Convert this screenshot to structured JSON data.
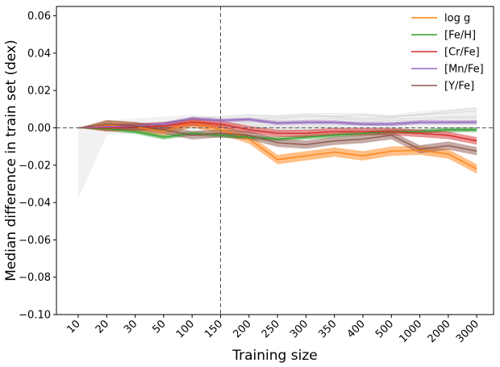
{
  "chart_data": {
    "type": "line",
    "title": "",
    "xlabel": "Training size",
    "ylabel": "Median difference in train set (dex)",
    "categories": [
      "10",
      "20",
      "30",
      "50",
      "100",
      "150",
      "200",
      "250",
      "300",
      "350",
      "400",
      "500",
      "1000",
      "2000",
      "3000"
    ],
    "ylim": [
      -0.1,
      0.065
    ],
    "yticks": [
      0.06,
      0.04,
      0.02,
      0.0,
      -0.02,
      -0.04,
      -0.06,
      -0.08,
      -0.1
    ],
    "ytick_labels": [
      "0.06",
      "0.04",
      "0.02",
      "0.00",
      "−0.02",
      "−0.04",
      "−0.06",
      "−0.08",
      "−0.10"
    ],
    "reference_vline_category": "150",
    "reference_hline_value": 0.0,
    "legend_position": "top-right",
    "series": [
      {
        "name": "log g",
        "color": "#ff7f0e",
        "values": [
          0.0,
          0.0015,
          0.0005,
          -0.002,
          0.003,
          -0.001,
          -0.006,
          -0.017,
          -0.015,
          -0.013,
          -0.015,
          -0.0125,
          -0.012,
          -0.014,
          -0.022
        ],
        "band": 0.0025
      },
      {
        "name": "[Fe/H]",
        "color": "#2ca02c",
        "values": [
          0.0,
          -0.0005,
          -0.002,
          -0.005,
          -0.003,
          -0.004,
          -0.005,
          -0.006,
          -0.005,
          -0.004,
          -0.003,
          -0.002,
          -0.002,
          -0.001,
          -0.001
        ],
        "band": 0.0012
      },
      {
        "name": "[Cr/Fe]",
        "color": "#d62728",
        "values": [
          0.0,
          0.0,
          0.0005,
          0.001,
          0.003,
          0.002,
          -0.001,
          -0.003,
          -0.003,
          -0.002,
          -0.002,
          -0.002,
          -0.003,
          -0.004,
          -0.007
        ],
        "band": 0.002
      },
      {
        "name": "[Mn/Fe]",
        "color": "#9467bd",
        "values": [
          0.0,
          0.0005,
          0.001,
          0.002,
          0.005,
          0.004,
          0.0045,
          0.0025,
          0.003,
          0.003,
          0.002,
          0.002,
          0.003,
          0.003,
          0.003
        ],
        "band": 0.001
      },
      {
        "name": "[Y/Fe]",
        "color": "#8c564b",
        "values": [
          0.0,
          0.002,
          0.001,
          -0.001,
          -0.004,
          -0.003,
          -0.004,
          -0.008,
          -0.009,
          -0.007,
          -0.006,
          -0.004,
          -0.0115,
          -0.0095,
          -0.0125
        ],
        "band": 0.0022
      }
    ],
    "background_series_color": "#bbbbbb",
    "background_series": [
      [
        0.0,
        0.001,
        0.002,
        0.003,
        0.004,
        0.004,
        0.005,
        0.005,
        0.006,
        0.006,
        0.005,
        0.006,
        0.007,
        0.009,
        0.0105
      ],
      [
        0.0,
        0.0,
        0.001,
        0.002,
        0.003,
        0.003,
        0.004,
        0.004,
        0.004,
        0.005,
        0.004,
        0.005,
        0.005,
        0.006,
        0.006
      ],
      [
        0.0,
        0.001,
        0.001,
        0.002,
        0.002,
        0.002,
        0.003,
        0.003,
        0.002,
        0.003,
        0.003,
        0.004,
        0.004,
        0.005,
        0.005
      ],
      [
        0.0,
        -0.001,
        0.0,
        0.001,
        0.001,
        0.002,
        0.002,
        0.001,
        0.001,
        0.002,
        0.002,
        0.003,
        0.003,
        0.003,
        0.004
      ],
      [
        0.0,
        0.0,
        -0.001,
        0.0,
        0.0,
        0.001,
        0.001,
        0.0,
        0.0,
        0.001,
        0.002,
        0.001,
        0.002,
        0.002,
        0.002
      ],
      [
        0.0,
        0.001,
        0.002,
        0.003,
        0.005,
        0.006,
        0.007,
        0.006,
        0.007,
        0.006,
        0.007,
        0.006,
        0.007,
        0.008,
        0.009
      ],
      [
        0.0,
        -0.001,
        0.0,
        -0.001,
        0.0,
        -0.001,
        -0.002,
        -0.002,
        -0.001,
        -0.002,
        -0.001,
        -0.001,
        -0.002,
        -0.002,
        -0.001
      ]
    ],
    "background_envelope": {
      "upper": [
        0.0,
        0.004,
        0.005,
        0.006,
        0.007,
        0.006,
        0.007,
        0.007,
        0.008,
        0.008,
        0.008,
        0.007,
        0.009,
        0.01,
        0.011
      ],
      "lower": [
        -0.038,
        -0.004,
        -0.003,
        -0.003,
        -0.002,
        -0.002,
        -0.003,
        -0.003,
        -0.003,
        -0.003,
        -0.002,
        -0.002,
        -0.003,
        -0.003,
        -0.002
      ]
    }
  }
}
